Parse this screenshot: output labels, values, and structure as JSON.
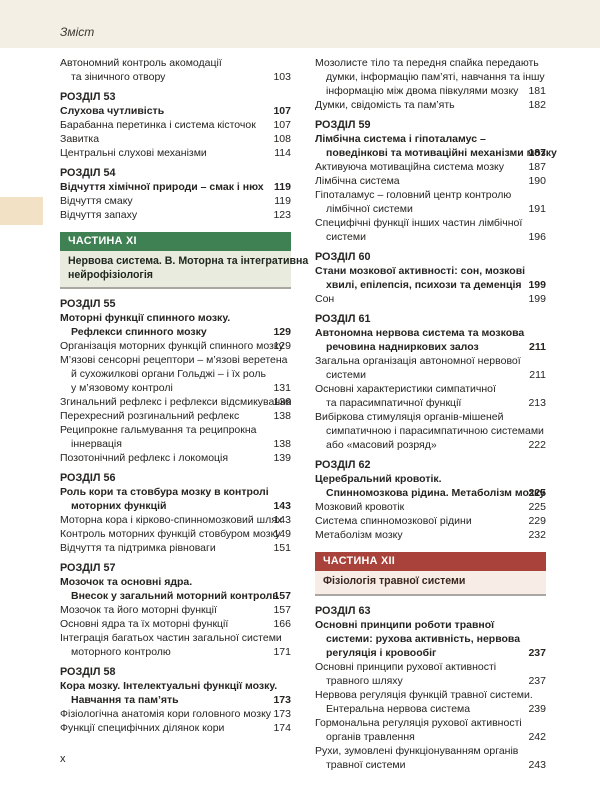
{
  "page": {
    "header": "Зміст",
    "footer": "x"
  },
  "colors": {
    "top_band": "#f4efe4",
    "edge_tab": "#f3e1c6",
    "text": "#262422",
    "green_bar": "#3f8153",
    "green_sub_bg": "#e9ebdf",
    "green_sub_text": "#20281f",
    "red_bar": "#a9423a",
    "red_sub_bg": "#f8ece7",
    "red_sub_text": "#3a2620",
    "sub_rule": "#aaa7a2"
  },
  "columns": {
    "left": [
      {
        "type": "entry",
        "lines": [
          "Автономний контроль акомодації",
          "та зіничного отвору"
        ],
        "page": "103"
      },
      {
        "type": "chapter",
        "label": "РОЗДІЛ 53"
      },
      {
        "type": "title",
        "lines": [
          "Слухова чутливість"
        ],
        "page": "107"
      },
      {
        "type": "entry",
        "lines": [
          "Барабанна перетинка і система кісточок"
        ],
        "page": "107"
      },
      {
        "type": "entry",
        "lines": [
          "Завитка"
        ],
        "page": "108"
      },
      {
        "type": "entry",
        "lines": [
          "Центральні слухові механізми"
        ],
        "page": "114"
      },
      {
        "type": "chapter",
        "label": "РОЗДІЛ 54"
      },
      {
        "type": "title",
        "lines": [
          "Відчуття хімічної природи – смак і нюх"
        ],
        "page": "119"
      },
      {
        "type": "entry",
        "lines": [
          "Відчуття смаку"
        ],
        "page": "119"
      },
      {
        "type": "entry",
        "lines": [
          "Відчуття запаху"
        ],
        "page": "123"
      },
      {
        "type": "part",
        "accent": "green",
        "label": "ЧАСТИНА XI",
        "title_lines": [
          "Нервова система. В. Моторна та інтегративна",
          "нейрофізіологія"
        ]
      },
      {
        "type": "chapter",
        "label": "РОЗДІЛ 55"
      },
      {
        "type": "title",
        "lines": [
          "Моторні функції спинного мозку.",
          "Рефлекси спинного мозку"
        ],
        "page": "129"
      },
      {
        "type": "entry",
        "lines": [
          "Організація моторних функцій спинного мозку"
        ],
        "page": "129"
      },
      {
        "type": "entry",
        "lines": [
          "М’язові сенсорні рецептори – м’язові веретена",
          "й сухожилкові органи Гольджі – і їх роль",
          "у м’язовому контролі"
        ],
        "page": "131"
      },
      {
        "type": "entry",
        "lines": [
          "Згинальний рефлекс і рефлекси відсмикування"
        ],
        "page": "136"
      },
      {
        "type": "entry",
        "lines": [
          "Перехресний розгинальний рефлекс"
        ],
        "page": "138"
      },
      {
        "type": "entry",
        "lines": [
          "Реципрокне гальмування та реципрокна",
          "іннервація"
        ],
        "page": "138"
      },
      {
        "type": "entry",
        "lines": [
          "Позотонічний рефлекс і локомоція"
        ],
        "page": "139"
      },
      {
        "type": "chapter",
        "label": "РОЗДІЛ 56"
      },
      {
        "type": "title",
        "lines": [
          "Роль кори та стовбура мозку в контролі",
          "моторних функцій"
        ],
        "page": "143"
      },
      {
        "type": "entry",
        "lines": [
          "Моторна кора і кірково-спинномозковий шлях"
        ],
        "page": "143"
      },
      {
        "type": "entry",
        "lines": [
          "Контроль моторних функцій стовбуром мозку"
        ],
        "page": "149"
      },
      {
        "type": "entry",
        "lines": [
          "Відчуття та підтримка рівноваги"
        ],
        "page": "151"
      },
      {
        "type": "chapter",
        "label": "РОЗДІЛ 57"
      },
      {
        "type": "title",
        "lines": [
          "Мозочок та основні ядра.",
          "Внесок у загальний моторний контроль"
        ],
        "page": "157"
      },
      {
        "type": "entry",
        "lines": [
          "Мозочок та його моторні функції"
        ],
        "page": "157"
      },
      {
        "type": "entry",
        "lines": [
          "Основні ядра та їх моторні функції"
        ],
        "page": "166"
      },
      {
        "type": "entry",
        "lines": [
          "Інтеграція багатьох частин загальної системи",
          "моторного контролю"
        ],
        "page": "171"
      },
      {
        "type": "chapter",
        "label": "РОЗДІЛ 58"
      },
      {
        "type": "title",
        "lines": [
          "Кора мозку. Інтелектуальні функції мозку.",
          "Навчання та пам’ять"
        ],
        "page": "173"
      },
      {
        "type": "entry",
        "lines": [
          "Фізіологічна анатомія кори головного мозку"
        ],
        "page": "173"
      },
      {
        "type": "entry",
        "lines": [
          "Функції специфічних ділянок кори"
        ],
        "page": "174"
      }
    ],
    "right": [
      {
        "type": "entry",
        "lines": [
          "Мозолисте тіло та передня спайка передають",
          "думки, інформацію пам’яті, навчання та іншу",
          "інформацію між двома півкулями мозку"
        ],
        "page": "181"
      },
      {
        "type": "entry",
        "lines": [
          "Думки, свідомість та пам’ять"
        ],
        "page": "182"
      },
      {
        "type": "chapter",
        "label": "РОЗДІЛ 59"
      },
      {
        "type": "title",
        "lines": [
          "Лімбічна система і гіпоталамус –",
          "поведінкові та мотиваційні механізми мозку"
        ],
        "page": "187"
      },
      {
        "type": "entry",
        "lines": [
          "Активуюча мотиваційна система мозку"
        ],
        "page": "187"
      },
      {
        "type": "entry",
        "lines": [
          "Лімбічна система"
        ],
        "page": "190"
      },
      {
        "type": "entry",
        "lines": [
          "Гіпоталамус – головний центр контролю",
          "лімбічної системи"
        ],
        "page": "191"
      },
      {
        "type": "entry",
        "lines": [
          "Специфічні функції інших частин лімбічної",
          "системи"
        ],
        "page": "196"
      },
      {
        "type": "chapter",
        "label": "РОЗДІЛ 60"
      },
      {
        "type": "title",
        "lines": [
          "Стани мозкової активності: сон, мозкові",
          "хвилі, епілепсія, психози та деменція"
        ],
        "page": "199"
      },
      {
        "type": "entry",
        "lines": [
          "Сон"
        ],
        "page": "199"
      },
      {
        "type": "chapter",
        "label": "РОЗДІЛ 61"
      },
      {
        "type": "title",
        "lines": [
          "Автономна нервова система та мозкова",
          "речовина надниркових залоз"
        ],
        "page": "211"
      },
      {
        "type": "entry",
        "lines": [
          "Загальна організація автономної нервової",
          "системи"
        ],
        "page": "211"
      },
      {
        "type": "entry",
        "lines": [
          "Основні характеристики симпатичної",
          "та парасимпатичної функції"
        ],
        "page": "213"
      },
      {
        "type": "entry",
        "lines": [
          "Вибіркова стимуляція органів-мішеней",
          "симпатичною і парасимпатичною системами",
          "або «масовий розряд»"
        ],
        "page": "222"
      },
      {
        "type": "chapter",
        "label": "РОЗДІЛ 62"
      },
      {
        "type": "title",
        "lines": [
          "Церебральний кровотік.",
          "Спинномозкова рідина. Метаболізм мозку"
        ],
        "page": "225"
      },
      {
        "type": "entry",
        "lines": [
          "Мозковий кровотік"
        ],
        "page": "225"
      },
      {
        "type": "entry",
        "lines": [
          "Система спинномозкової рідини"
        ],
        "page": "229"
      },
      {
        "type": "entry",
        "lines": [
          "Метаболізм мозку"
        ],
        "page": "232"
      },
      {
        "type": "part",
        "accent": "red",
        "label": "ЧАСТИНА XII",
        "title_lines": [
          "Фізіологія травної системи"
        ]
      },
      {
        "type": "chapter",
        "label": "РОЗДІЛ 63"
      },
      {
        "type": "title",
        "lines": [
          "Основні принципи роботи травної",
          "системи: рухова активність, нервова",
          "регуляція і кровообіг"
        ],
        "page": "237"
      },
      {
        "type": "entry",
        "lines": [
          "Основні принципи рухової активності",
          "травного шляху"
        ],
        "page": "237"
      },
      {
        "type": "entry",
        "lines": [
          "Нервова регуляція функцій травної системи.",
          "Ентеральна нервова система"
        ],
        "page": "239"
      },
      {
        "type": "entry",
        "lines": [
          "Гормональна регуляція рухової активності",
          "органів травлення"
        ],
        "page": "242"
      },
      {
        "type": "entry",
        "lines": [
          "Рухи, зумовлені функціонуванням органів",
          "травної системи"
        ],
        "page": "243"
      }
    ]
  }
}
